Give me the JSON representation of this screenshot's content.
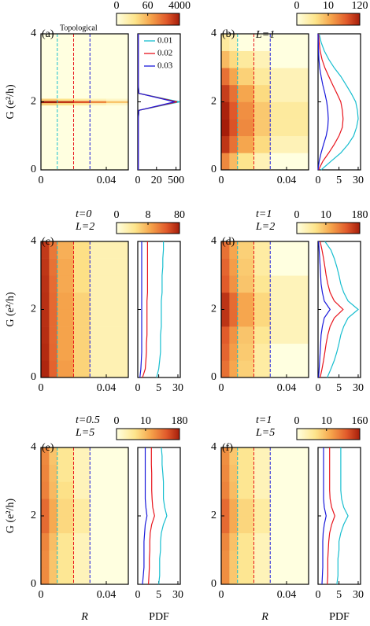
{
  "chart_data": [
    {
      "type": "heatmap_pdf",
      "label": "(a)",
      "annotation": "Topological",
      "params": [],
      "ylabel": "G (e²/h)",
      "xlim": [
        0,
        0.0535
      ],
      "xticks": [
        0,
        0.04
      ],
      "ylim": [
        0,
        4
      ],
      "yticks": [
        0,
        2,
        4
      ],
      "clim": [
        0,
        4000
      ],
      "cticks": [
        0,
        60,
        4000
      ],
      "cut_R": [
        0.01,
        0.02,
        0.03
      ],
      "heat_R_edges": [
        0,
        0.01,
        0.02,
        0.03,
        0.04,
        0.0535
      ],
      "heat_G_edges": [
        0,
        1.9,
        1.97,
        2.03,
        2.1,
        4
      ],
      "heat_values": [
        [
          0,
          0,
          0,
          0,
          0
        ],
        [
          20,
          10,
          5,
          2,
          1
        ],
        [
          4000,
          2000,
          800,
          200,
          30
        ],
        [
          20,
          10,
          5,
          2,
          1
        ],
        [
          0,
          0,
          0,
          0,
          0
        ]
      ],
      "pdf_xlim": [
        0,
        1000
      ],
      "pdf_xticks": [
        0,
        20,
        500
      ],
      "legend": true,
      "G": [
        0,
        0.25,
        0.5,
        0.75,
        1,
        1.25,
        1.5,
        1.75,
        2,
        2.25,
        2.5,
        2.75,
        3,
        3.25,
        3.5,
        3.75,
        4
      ],
      "series": [
        {
          "name": "0.01",
          "color": "#17becf",
          "values": [
            0.1,
            0.1,
            0.1,
            0.1,
            0.1,
            0.1,
            0.1,
            0.2,
            900,
            0.2,
            0.1,
            0.1,
            0.1,
            0.1,
            0.1,
            0.1,
            0.1
          ]
        },
        {
          "name": "0.02",
          "color": "#e8141c",
          "values": [
            0.1,
            0.1,
            0.1,
            0.1,
            0.1,
            0.1,
            0.1,
            0.2,
            600,
            0.2,
            0.1,
            0.1,
            0.1,
            0.1,
            0.1,
            0.1,
            0.1
          ]
        },
        {
          "name": "0.03",
          "color": "#1a1adb",
          "values": [
            0.1,
            0.1,
            0.1,
            0.1,
            0.1,
            0.1,
            0.1,
            0.2,
            400,
            0.2,
            0.1,
            0.1,
            0.1,
            0.1,
            0.1,
            0.1,
            0.1
          ]
        }
      ]
    },
    {
      "type": "heatmap_pdf",
      "label": "(b)",
      "params": [
        "L=1"
      ],
      "xlim": [
        0,
        0.0535
      ],
      "xticks": [
        0,
        0.04
      ],
      "ylim": [
        0,
        4
      ],
      "yticks": [
        0,
        2,
        4
      ],
      "clim": [
        0,
        120
      ],
      "cticks": [
        0,
        10,
        120
      ],
      "cut_R": [
        0.01,
        0.02,
        0.03
      ],
      "heat_R_edges": [
        0,
        0.005,
        0.01,
        0.02,
        0.03,
        0.0535
      ],
      "heat_G_edges": [
        0,
        0.5,
        1,
        1.5,
        2,
        2.5,
        3,
        3.5,
        4
      ],
      "heat_values": [
        [
          20,
          8,
          3,
          1,
          0
        ],
        [
          80,
          30,
          12,
          4,
          1
        ],
        [
          120,
          50,
          20,
          6,
          2
        ],
        [
          110,
          45,
          18,
          6,
          2
        ],
        [
          70,
          30,
          12,
          4,
          1
        ],
        [
          30,
          12,
          5,
          2,
          1
        ],
        [
          8,
          4,
          2,
          1,
          0
        ],
        [
          2,
          1,
          0,
          0,
          0
        ]
      ],
      "pdf_xlim": [
        0,
        37
      ],
      "pdf_xticks": [
        0,
        5,
        30
      ],
      "legend": false,
      "G": [
        0,
        0.25,
        0.5,
        0.75,
        1,
        1.25,
        1.5,
        1.75,
        2,
        2.25,
        2.5,
        2.75,
        3,
        3.25,
        3.5,
        3.75,
        4
      ],
      "series": [
        {
          "color": "#17becf",
          "values": [
            0.3,
            2,
            6,
            12,
            20,
            26,
            30,
            28,
            24,
            16,
            10,
            6,
            3,
            1.5,
            0.7,
            0.3,
            0.1
          ]
        },
        {
          "color": "#e8141c",
          "values": [
            0.05,
            0.5,
            1.5,
            3,
            5,
            7,
            7.5,
            7,
            6,
            4,
            2.5,
            1.5,
            0.8,
            0.4,
            0.2,
            0.1,
            0.05
          ]
        },
        {
          "color": "#1a1adb",
          "values": [
            0,
            0.1,
            0.3,
            0.6,
            1,
            1.3,
            1.4,
            1.3,
            1.1,
            0.8,
            0.5,
            0.3,
            0.15,
            0.08,
            0.04,
            0.02,
            0
          ]
        }
      ]
    },
    {
      "type": "heatmap_pdf",
      "label": "(c)",
      "params": [
        "t=0",
        "L=2"
      ],
      "ylabel": "G (e²/h)",
      "xlim": [
        0,
        0.0535
      ],
      "xticks": [
        0,
        0.04
      ],
      "ylim": [
        0,
        4
      ],
      "yticks": [
        0,
        2,
        4
      ],
      "clim": [
        0,
        80
      ],
      "cticks": [
        0,
        8,
        80
      ],
      "cut_R": [
        0.01,
        0.02,
        0.03
      ],
      "heat_R_edges": [
        0,
        0.005,
        0.01,
        0.02,
        0.03,
        0.0535
      ],
      "heat_G_edges": [
        0,
        0.5,
        1,
        1.5,
        2,
        2.5,
        3,
        3.5,
        4
      ],
      "heat_values": [
        [
          70,
          28,
          11,
          4,
          1
        ],
        [
          65,
          26,
          10,
          4,
          1
        ],
        [
          62,
          25,
          10,
          4,
          1
        ],
        [
          60,
          25,
          10,
          4,
          1
        ],
        [
          60,
          25,
          10,
          4,
          1
        ],
        [
          58,
          24,
          9,
          3,
          1
        ],
        [
          55,
          22,
          9,
          3,
          1
        ],
        [
          52,
          20,
          8,
          3,
          1
        ]
      ],
      "pdf_xlim": [
        0,
        37
      ],
      "pdf_xticks": [
        0,
        5,
        30
      ],
      "legend": false,
      "G": [
        0,
        0.25,
        0.5,
        0.75,
        1,
        1.25,
        1.5,
        1.75,
        2,
        2.25,
        2.5,
        2.75,
        3,
        3.25,
        3.5,
        3.75,
        4
      ],
      "series": [
        {
          "color": "#17becf",
          "values": [
            4,
            5,
            5.5,
            6,
            6,
            6,
            6.5,
            6.5,
            6.5,
            6.5,
            7,
            7,
            7,
            7.5,
            7.5,
            8,
            8
          ]
        },
        {
          "color": "#e8141c",
          "values": [
            0.5,
            0.9,
            1,
            1.1,
            1.1,
            1.2,
            1.2,
            1.2,
            1.2,
            1.2,
            1.3,
            1.3,
            1.3,
            1.3,
            1.3,
            1.3,
            1.3
          ]
        },
        {
          "color": "#1a1adb",
          "values": [
            0.2,
            0.3,
            0.35,
            0.4,
            0.4,
            0.4,
            0.4,
            0.4,
            0.4,
            0.4,
            0.4,
            0.4,
            0.4,
            0.4,
            0.4,
            0.4,
            0.4
          ]
        }
      ]
    },
    {
      "type": "heatmap_pdf",
      "label": "(d)",
      "params": [
        "t=1",
        "L=2"
      ],
      "xlim": [
        0,
        0.0535
      ],
      "xticks": [
        0,
        0.04
      ],
      "ylim": [
        0,
        4
      ],
      "yticks": [
        0,
        2,
        4
      ],
      "clim": [
        0,
        180
      ],
      "cticks": [
        0,
        10,
        180
      ],
      "cut_R": [
        0.01,
        0.02,
        0.03
      ],
      "heat_R_edges": [
        0,
        0.005,
        0.01,
        0.02,
        0.03,
        0.0535
      ],
      "heat_G_edges": [
        0,
        0.5,
        1,
        1.5,
        2,
        2.5,
        3,
        3.5,
        4
      ],
      "heat_values": [
        [
          40,
          15,
          6,
          2,
          0
        ],
        [
          50,
          18,
          7,
          2,
          0
        ],
        [
          60,
          22,
          8,
          3,
          1
        ],
        [
          120,
          45,
          15,
          5,
          1
        ],
        [
          120,
          45,
          15,
          5,
          1
        ],
        [
          60,
          22,
          8,
          3,
          1
        ],
        [
          50,
          18,
          7,
          2,
          0
        ],
        [
          40,
          15,
          6,
          2,
          0
        ]
      ],
      "pdf_xlim": [
        0,
        37
      ],
      "pdf_xticks": [
        0,
        5,
        30
      ],
      "legend": false,
      "G": [
        0,
        0.25,
        0.5,
        0.75,
        1,
        1.25,
        1.5,
        1.75,
        2,
        2.25,
        2.5,
        2.75,
        3,
        3.25,
        3.5,
        3.75,
        4
      ],
      "series": [
        {
          "color": "#17becf",
          "values": [
            1.2,
            2,
            3,
            4,
            5,
            6,
            8,
            12,
            30,
            12,
            8,
            6,
            5,
            4,
            3,
            2,
            0.8
          ]
        },
        {
          "color": "#e8141c",
          "values": [
            0.2,
            0.4,
            0.6,
            0.8,
            1,
            1.3,
            1.8,
            3,
            7.5,
            3,
            1.8,
            1.3,
            1,
            0.8,
            0.6,
            0.4,
            0.2
          ]
        },
        {
          "color": "#1a1adb",
          "values": [
            0.05,
            0.1,
            0.15,
            0.2,
            0.25,
            0.3,
            0.45,
            0.7,
            1.8,
            0.7,
            0.45,
            0.3,
            0.25,
            0.2,
            0.15,
            0.1,
            0.05
          ]
        }
      ]
    },
    {
      "type": "heatmap_pdf",
      "label": "(e)",
      "params": [
        "t=0.5",
        "L=5"
      ],
      "ylabel": "G (e²/h)",
      "xlabel": "R",
      "pdf_xlabel": "PDF",
      "xlim": [
        0,
        0.0535
      ],
      "xticks": [
        0,
        0.04
      ],
      "ylim": [
        0,
        4
      ],
      "yticks": [
        0,
        2,
        4
      ],
      "clim": [
        0,
        180
      ],
      "cticks": [
        0,
        10,
        180
      ],
      "cut_R": [
        0.01,
        0.02,
        0.03
      ],
      "heat_R_edges": [
        0,
        0.005,
        0.01,
        0.02,
        0.03,
        0.0535
      ],
      "heat_G_edges": [
        0,
        0.5,
        1,
        1.5,
        2,
        2.5,
        3,
        3.5,
        4
      ],
      "heat_values": [
        [
          25,
          8,
          3,
          1,
          0
        ],
        [
          25,
          8,
          3,
          1,
          0
        ],
        [
          28,
          9,
          3,
          1,
          0
        ],
        [
          45,
          14,
          5,
          2,
          0
        ],
        [
          45,
          14,
          5,
          2,
          0
        ],
        [
          30,
          10,
          4,
          1,
          0
        ],
        [
          28,
          9,
          3,
          1,
          0
        ],
        [
          26,
          8,
          3,
          1,
          0
        ]
      ],
      "pdf_xlim": [
        0,
        37
      ],
      "pdf_xticks": [
        0,
        5,
        30
      ],
      "legend": false,
      "G": [
        0,
        0.25,
        0.5,
        0.75,
        1,
        1.25,
        1.5,
        1.75,
        2,
        2.25,
        2.5,
        2.75,
        3,
        3.25,
        3.5,
        3.75,
        4
      ],
      "series": [
        {
          "color": "#17becf",
          "values": [
            5,
            5.5,
            5.5,
            5.5,
            6,
            6,
            6.5,
            8,
            11,
            9,
            8,
            8,
            8,
            7.5,
            7,
            7,
            6.5
          ]
        },
        {
          "color": "#e8141c",
          "values": [
            1.5,
            1.6,
            1.7,
            1.7,
            1.8,
            1.8,
            1.9,
            2.3,
            3.2,
            2.6,
            2.4,
            2.3,
            2.3,
            2.3,
            2.2,
            2.2,
            2.2
          ]
        },
        {
          "color": "#1a1adb",
          "values": [
            0.5,
            0.6,
            0.7,
            0.7,
            0.7,
            0.7,
            0.8,
            0.9,
            1.2,
            1,
            0.9,
            0.9,
            0.9,
            0.9,
            0.9,
            0.9,
            0.9
          ]
        }
      ]
    },
    {
      "type": "heatmap_pdf",
      "label": "(f)",
      "params": [
        "t=1",
        "L=5"
      ],
      "xlabel": "R",
      "pdf_xlabel": "PDF",
      "xlim": [
        0,
        0.0535
      ],
      "xticks": [
        0,
        0.04
      ],
      "ylim": [
        0,
        4
      ],
      "yticks": [
        0,
        2,
        4
      ],
      "clim": [
        0,
        160
      ],
      "cticks": [
        0,
        10,
        160
      ],
      "cut_R": [
        0.01,
        0.02,
        0.03
      ],
      "heat_R_edges": [
        0,
        0.005,
        0.01,
        0.02,
        0.03,
        0.0535
      ],
      "heat_G_edges": [
        0,
        0.5,
        1,
        1.5,
        2,
        2.5,
        3,
        3.5,
        4
      ],
      "heat_values": [
        [
          22,
          7,
          3,
          1,
          0
        ],
        [
          22,
          7,
          3,
          1,
          0
        ],
        [
          25,
          8,
          3,
          1,
          0
        ],
        [
          42,
          13,
          5,
          2,
          0
        ],
        [
          42,
          13,
          5,
          2,
          0
        ],
        [
          27,
          9,
          3,
          1,
          0
        ],
        [
          24,
          8,
          3,
          1,
          0
        ],
        [
          22,
          7,
          3,
          1,
          0
        ]
      ],
      "pdf_xlim": [
        0,
        37
      ],
      "pdf_xticks": [
        0,
        5,
        30
      ],
      "legend": false,
      "G": [
        0,
        0.25,
        0.5,
        0.75,
        1,
        1.25,
        1.5,
        1.75,
        2,
        2.25,
        2.5,
        2.75,
        3,
        3.25,
        3.5,
        3.75,
        4
      ],
      "series": [
        {
          "color": "#17becf",
          "values": [
            4,
            4.5,
            4.5,
            4.5,
            5,
            5,
            6,
            8,
            12,
            8,
            6.5,
            6,
            6,
            6,
            6,
            6,
            6
          ]
        },
        {
          "color": "#e8141c",
          "values": [
            1.2,
            1.3,
            1.3,
            1.3,
            1.4,
            1.5,
            1.7,
            2.2,
            3.2,
            2.2,
            1.8,
            1.7,
            1.7,
            1.7,
            1.7,
            1.7,
            1.7
          ]
        },
        {
          "color": "#1a1adb",
          "values": [
            0.4,
            0.45,
            0.5,
            0.5,
            0.5,
            0.5,
            0.55,
            0.7,
            1,
            0.7,
            0.6,
            0.6,
            0.6,
            0.6,
            0.6,
            0.6,
            0.6
          ]
        }
      ]
    }
  ]
}
